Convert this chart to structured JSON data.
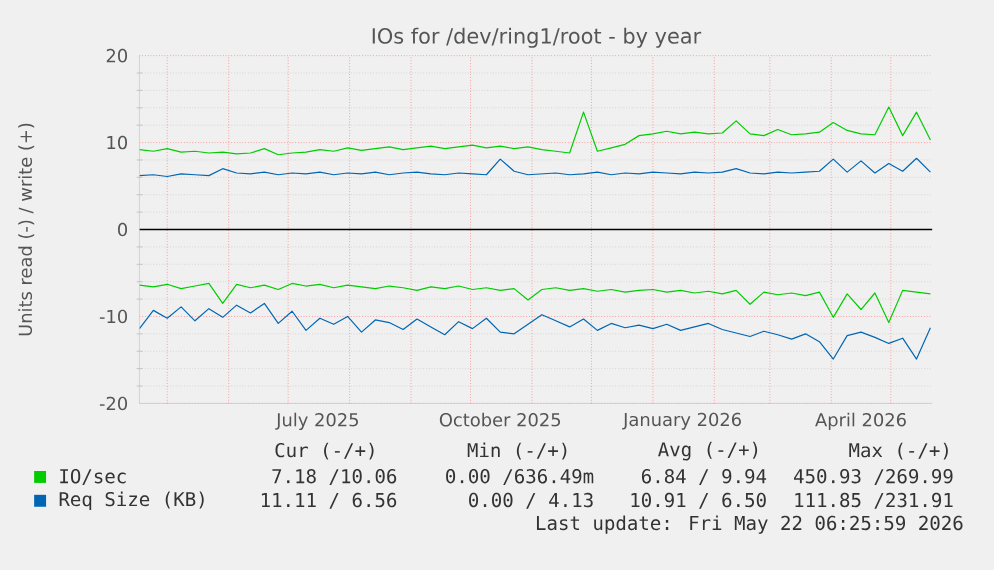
{
  "chart_data": {
    "type": "line",
    "title": "IOs for /dev/ring1/root - by year",
    "ylabel": "Units read (-) / write (+)",
    "x": [
      "2025-04-17",
      "2025-04-24",
      "2025-05-01",
      "2025-05-08",
      "2025-05-15",
      "2025-05-22",
      "2025-05-29",
      "2025-06-05",
      "2025-06-12",
      "2025-06-19",
      "2025-06-26",
      "2025-07-03",
      "2025-07-10",
      "2025-07-17",
      "2025-07-24",
      "2025-07-31",
      "2025-08-07",
      "2025-08-14",
      "2025-08-21",
      "2025-08-28",
      "2025-09-04",
      "2025-09-11",
      "2025-09-18",
      "2025-09-25",
      "2025-10-02",
      "2025-10-09",
      "2025-10-16",
      "2025-10-23",
      "2025-10-30",
      "2025-11-06",
      "2025-11-13",
      "2025-11-20",
      "2025-11-27",
      "2025-12-04",
      "2025-12-11",
      "2025-12-18",
      "2025-12-25",
      "2026-01-01",
      "2026-01-08",
      "2026-01-15",
      "2026-01-22",
      "2026-01-29",
      "2026-02-05",
      "2026-02-12",
      "2026-02-19",
      "2026-02-26",
      "2026-03-05",
      "2026-03-12",
      "2026-03-19",
      "2026-03-26",
      "2026-04-02",
      "2026-04-09",
      "2026-04-16",
      "2026-04-23",
      "2026-04-30",
      "2026-05-07",
      "2026-05-14",
      "2026-05-21"
    ],
    "series": [
      {
        "name": "IO/sec",
        "color": "#00cc00",
        "values": [
          9.2,
          9.0,
          9.3,
          8.9,
          9.0,
          8.8,
          8.9,
          8.7,
          8.8,
          9.3,
          8.6,
          8.8,
          8.9,
          9.2,
          9.0,
          9.4,
          9.1,
          9.3,
          9.5,
          9.2,
          9.4,
          9.6,
          9.3,
          9.5,
          9.7,
          9.4,
          9.6,
          9.3,
          9.5,
          9.2,
          9.0,
          8.8,
          13.5,
          9.0,
          9.4,
          9.8,
          10.8,
          11.0,
          11.3,
          11.0,
          11.2,
          11.0,
          11.1,
          12.5,
          11.0,
          10.8,
          11.5,
          10.9,
          11.0,
          11.2,
          12.3,
          11.4,
          11.0,
          10.9,
          14.1,
          10.8,
          13.5,
          10.3
        ]
      },
      {
        "color": "#00cc00",
        "values": [
          -6.4,
          -6.6,
          -6.3,
          -6.8,
          -6.5,
          -6.2,
          -8.5,
          -6.3,
          -6.7,
          -6.4,
          -6.9,
          -6.2,
          -6.5,
          -6.3,
          -6.7,
          -6.4,
          -6.6,
          -6.8,
          -6.5,
          -6.7,
          -7.0,
          -6.6,
          -6.8,
          -6.5,
          -6.9,
          -6.7,
          -7.0,
          -6.8,
          -8.1,
          -6.9,
          -6.7,
          -7.0,
          -6.8,
          -7.1,
          -6.9,
          -7.2,
          -7.0,
          -6.9,
          -7.2,
          -7.0,
          -7.3,
          -7.1,
          -7.4,
          -7.0,
          -8.6,
          -7.2,
          -7.5,
          -7.3,
          -7.6,
          -7.2,
          -10.1,
          -7.4,
          -9.2,
          -7.3,
          -10.7,
          -7.0,
          -7.2,
          -7.4
        ]
      },
      {
        "name": "Req Size (KB)",
        "color": "#0066b3",
        "values": [
          6.2,
          6.3,
          6.1,
          6.4,
          6.3,
          6.2,
          7.0,
          6.5,
          6.4,
          6.6,
          6.3,
          6.5,
          6.4,
          6.6,
          6.3,
          6.5,
          6.4,
          6.6,
          6.3,
          6.5,
          6.6,
          6.4,
          6.3,
          6.5,
          6.4,
          6.3,
          8.1,
          6.7,
          6.3,
          6.4,
          6.5,
          6.3,
          6.4,
          6.6,
          6.3,
          6.5,
          6.4,
          6.6,
          6.5,
          6.4,
          6.6,
          6.5,
          6.6,
          7.0,
          6.5,
          6.4,
          6.6,
          6.5,
          6.6,
          6.7,
          8.1,
          6.6,
          7.9,
          6.5,
          7.6,
          6.7,
          8.2,
          6.6
        ]
      },
      {
        "color": "#0066b3",
        "values": [
          -11.4,
          -9.3,
          -10.2,
          -8.9,
          -10.5,
          -9.1,
          -10.1,
          -8.7,
          -9.6,
          -8.5,
          -10.8,
          -9.4,
          -11.6,
          -10.2,
          -10.9,
          -10.0,
          -11.8,
          -10.4,
          -10.7,
          -11.5,
          -10.3,
          -11.2,
          -12.1,
          -10.6,
          -11.4,
          -10.2,
          -11.8,
          -12.0,
          -10.9,
          -9.8,
          -10.5,
          -11.2,
          -10.3,
          -11.6,
          -10.8,
          -11.3,
          -11.0,
          -11.4,
          -10.9,
          -11.6,
          -11.2,
          -10.8,
          -11.5,
          -11.9,
          -12.3,
          -11.7,
          -12.1,
          -12.6,
          -12.0,
          -12.9,
          -14.9,
          -12.2,
          -11.8,
          -12.4,
          -13.1,
          -12.5,
          -14.9,
          -11.3
        ]
      }
    ],
    "xlim": [
      "2025-04-17",
      "2026-05-22"
    ],
    "xticks": [
      {
        "value": "2025-05-01",
        "label": null
      },
      {
        "value": "2025-06-01",
        "label": null
      },
      {
        "value": "2025-07-01",
        "label": null
      },
      {
        "value": "2025-07-16",
        "label": "July 2025"
      },
      {
        "value": "2025-08-01",
        "label": null
      },
      {
        "value": "2025-09-01",
        "label": null
      },
      {
        "value": "2025-10-01",
        "label": null
      },
      {
        "value": "2025-10-16",
        "label": "October 2025"
      },
      {
        "value": "2025-11-01",
        "label": null
      },
      {
        "value": "2025-12-01",
        "label": null
      },
      {
        "value": "2026-01-01",
        "label": null
      },
      {
        "value": "2026-01-16",
        "label": "January 2026"
      },
      {
        "value": "2026-02-01",
        "label": null
      },
      {
        "value": "2026-03-01",
        "label": null
      },
      {
        "value": "2026-04-01",
        "label": null
      },
      {
        "value": "2026-04-16",
        "label": "April 2026"
      },
      {
        "value": "2026-05-01",
        "label": null
      }
    ],
    "ylim": [
      -20,
      20
    ],
    "yticks": [
      -20,
      -10,
      0,
      10,
      20
    ],
    "ref_lines": [
      {
        "axis": "y",
        "value": 0,
        "color": "#000000"
      }
    ],
    "grid": true,
    "legend": "bottom",
    "marker": "none",
    "line_style": "solid",
    "annotations": [
      "Cur (-/+)",
      "Min (-/+)",
      "Avg (-/+)",
      "Max (-/+)",
      "7.18 /10.06",
      "0.00 /636.49m",
      "6.84 / 9.94",
      "450.93 /269.99",
      "11.11 / 6.56",
      "0.00 / 4.13",
      "10.91 / 6.50",
      "111.85 /231.91",
      "Last update: Fri May 22 06:25:59 2026"
    ]
  }
}
